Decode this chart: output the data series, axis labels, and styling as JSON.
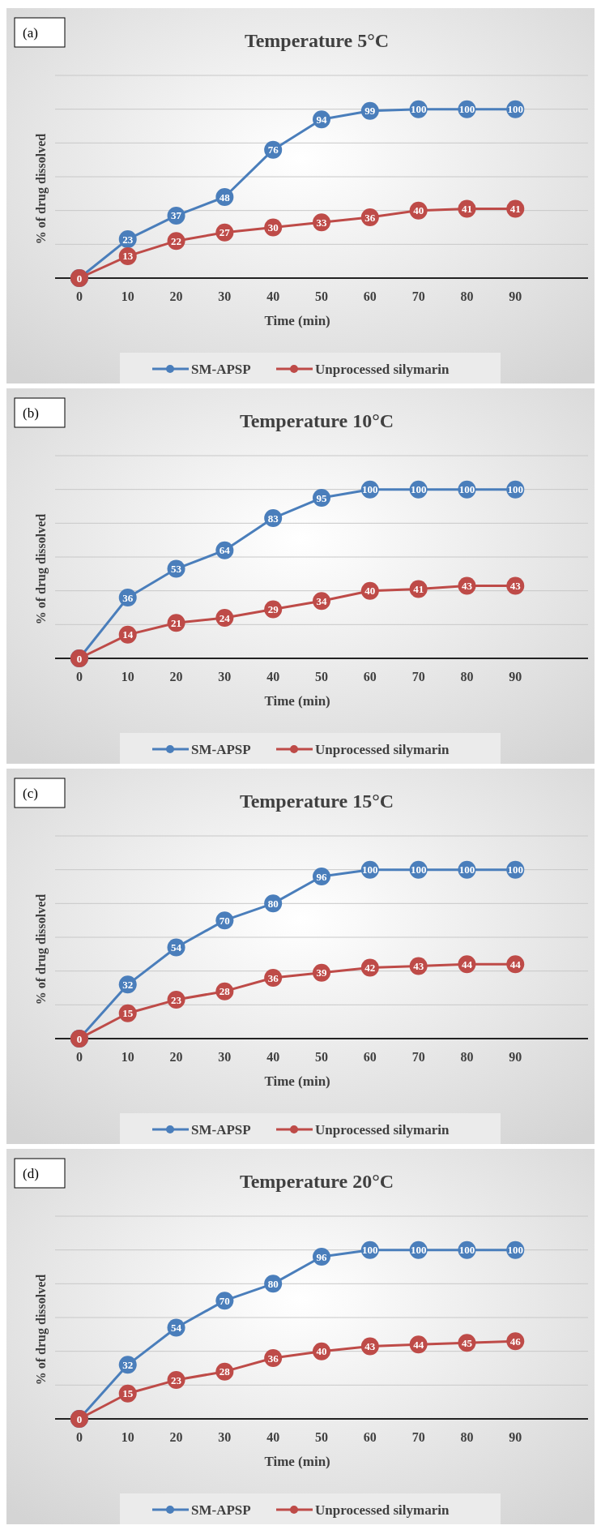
{
  "chart_data": [
    {
      "type": "line",
      "title": "Temperature 5°C",
      "xlabel": "Time (min)",
      "ylabel": "% of drug dissolved",
      "annotations": [
        "(a)"
      ],
      "categories": [
        "0",
        "10",
        "20",
        "30",
        "40",
        "50",
        "60",
        "70",
        "80",
        "90"
      ],
      "ylim": [
        0,
        120
      ],
      "yticks": [
        {
          "value": 0,
          "label": null
        },
        {
          "value": 20,
          "label": null
        },
        {
          "value": 40,
          "label": null
        },
        {
          "value": 60,
          "label": null
        },
        {
          "value": 80,
          "label": null
        },
        {
          "value": 100,
          "label": null
        },
        {
          "value": 120,
          "label": null
        }
      ],
      "tick_labels": "x",
      "grid": "y",
      "legend": "bottom",
      "marker": "circle",
      "series": [
        {
          "name": "SM-APSP",
          "color": "#4a7ebb",
          "values": [
            0,
            23,
            37,
            48,
            76,
            94,
            99,
            100,
            100,
            100
          ],
          "value_labels": [
            null,
            "23",
            "37",
            "48",
            "76",
            "94",
            "99",
            "100",
            "100",
            "100"
          ]
        },
        {
          "name": "Unprocessed silymarin",
          "color": "#be4b48",
          "values": [
            0,
            13,
            22,
            27,
            30,
            33,
            36,
            40,
            41,
            41
          ],
          "value_labels": [
            "0",
            "13",
            "22",
            "27",
            "30",
            "33",
            "36",
            "40",
            "41",
            "41"
          ]
        }
      ]
    },
    {
      "type": "line",
      "title": "Temperature 10°C",
      "xlabel": "Time (min)",
      "ylabel": "% of drug dissolved",
      "annotations": [
        "(b)"
      ],
      "categories": [
        "0",
        "10",
        "20",
        "30",
        "40",
        "50",
        "60",
        "70",
        "80",
        "90"
      ],
      "ylim": [
        0,
        120
      ],
      "yticks": [
        {
          "value": 0,
          "label": null
        },
        {
          "value": 20,
          "label": null
        },
        {
          "value": 40,
          "label": null
        },
        {
          "value": 60,
          "label": null
        },
        {
          "value": 80,
          "label": null
        },
        {
          "value": 100,
          "label": null
        },
        {
          "value": 120,
          "label": null
        }
      ],
      "tick_labels": "x",
      "grid": "y",
      "legend": "bottom",
      "marker": "circle",
      "series": [
        {
          "name": "SM-APSP",
          "color": "#4a7ebb",
          "values": [
            0,
            36,
            53,
            64,
            83,
            95,
            100,
            100,
            100,
            100
          ],
          "value_labels": [
            null,
            "36",
            "53",
            "64",
            "83",
            "95",
            "100",
            "100",
            "100",
            "100"
          ]
        },
        {
          "name": "Unprocessed silymarin",
          "color": "#be4b48",
          "values": [
            0,
            14,
            21,
            24,
            29,
            34,
            40,
            41,
            43,
            43
          ],
          "value_labels": [
            "0",
            "14",
            "21",
            "24",
            "29",
            "34",
            "40",
            "41",
            "43",
            "43"
          ]
        }
      ]
    },
    {
      "type": "line",
      "title": "Temperature 15°C",
      "xlabel": "Time (min)",
      "ylabel": "% of drug dissolved",
      "annotations": [
        "(c)"
      ],
      "categories": [
        "0",
        "10",
        "20",
        "30",
        "40",
        "50",
        "60",
        "70",
        "80",
        "90"
      ],
      "ylim": [
        0,
        120
      ],
      "yticks": [
        {
          "value": 0,
          "label": null
        },
        {
          "value": 20,
          "label": null
        },
        {
          "value": 40,
          "label": null
        },
        {
          "value": 60,
          "label": null
        },
        {
          "value": 80,
          "label": null
        },
        {
          "value": 100,
          "label": null
        },
        {
          "value": 120,
          "label": null
        }
      ],
      "tick_labels": "x",
      "grid": "y",
      "legend": "bottom",
      "marker": "circle",
      "series": [
        {
          "name": "SM-APSP",
          "color": "#4a7ebb",
          "values": [
            0,
            32,
            54,
            70,
            80,
            96,
            100,
            100,
            100,
            100
          ],
          "value_labels": [
            null,
            "32",
            "54",
            "70",
            "80",
            "96",
            "100",
            "100",
            "100",
            "100"
          ]
        },
        {
          "name": "Unprocessed silymarin",
          "color": "#be4b48",
          "values": [
            0,
            15,
            23,
            28,
            36,
            39,
            42,
            43,
            44,
            44
          ],
          "value_labels": [
            "0",
            "15",
            "23",
            "28",
            "36",
            "39",
            "42",
            "43",
            "44",
            "44"
          ]
        }
      ]
    },
    {
      "type": "line",
      "title": "Temperature 20°C",
      "xlabel": "Time (min)",
      "ylabel": "% of drug dissolved",
      "annotations": [
        "(d)"
      ],
      "categories": [
        "0",
        "10",
        "20",
        "30",
        "40",
        "50",
        "60",
        "70",
        "80",
        "90"
      ],
      "ylim": [
        0,
        120
      ],
      "yticks": [
        {
          "value": 0,
          "label": null
        },
        {
          "value": 20,
          "label": null
        },
        {
          "value": 40,
          "label": null
        },
        {
          "value": 60,
          "label": null
        },
        {
          "value": 80,
          "label": null
        },
        {
          "value": 100,
          "label": null
        },
        {
          "value": 120,
          "label": null
        }
      ],
      "tick_labels": "x",
      "grid": "y",
      "legend": "bottom",
      "marker": "circle",
      "series": [
        {
          "name": "SM-APSP",
          "color": "#4a7ebb",
          "values": [
            0,
            32,
            54,
            70,
            80,
            96,
            100,
            100,
            100,
            100
          ],
          "value_labels": [
            null,
            "32",
            "54",
            "70",
            "80",
            "96",
            "100",
            "100",
            "100",
            "100"
          ]
        },
        {
          "name": "Unprocessed silymarin",
          "color": "#be4b48",
          "values": [
            0,
            15,
            23,
            28,
            36,
            40,
            43,
            44,
            45,
            46
          ],
          "value_labels": [
            "0",
            "15",
            "23",
            "28",
            "36",
            "40",
            "43",
            "44",
            "45",
            "46"
          ]
        }
      ]
    }
  ]
}
